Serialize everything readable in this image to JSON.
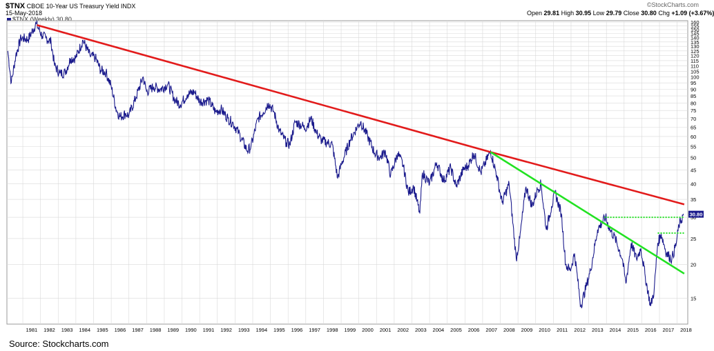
{
  "header": {
    "symbol": "$TNX",
    "description": "CBOE 10-Year US Treasury Yield",
    "exchange": "INDX",
    "date": "15-May-2018",
    "watermark": "©StockCharts.com",
    "open_label": "Open",
    "open": "29.81",
    "high_label": "High",
    "high": "30.95",
    "low_label": "Low",
    "low": "29.79",
    "close_label": "Close",
    "close": "30.80",
    "chg_label": "Chg",
    "chg": "+1.09 (+3.67%)"
  },
  "legend": {
    "label": "$TNX (Weekly) 30.80"
  },
  "last_value_tag": "30.80",
  "source": "Source: Stockcharts.com",
  "colors": {
    "price": "#1a1a8c",
    "resistance": "#e21b1b",
    "support": "#22e222",
    "grid": "#d9d9d9",
    "tag_bg": "#1a1a8c"
  },
  "chart_data": {
    "type": "line",
    "title": "CBOE 10-Year US Treasury Yield",
    "y_scale": "log",
    "ylim": [
      12,
      162
    ],
    "y_ticks": [
      15,
      20,
      25,
      30,
      35,
      40,
      45,
      50,
      55,
      60,
      65,
      70,
      75,
      80,
      85,
      90,
      95,
      100,
      105,
      110,
      115,
      120,
      125,
      130,
      135,
      140,
      145,
      150,
      155,
      160
    ],
    "x_ticks": [
      "1981",
      "1982",
      "1983",
      "1984",
      "1985",
      "1986",
      "1987",
      "1988",
      "1989",
      "1990",
      "1991",
      "1992",
      "1993",
      "1994",
      "1995",
      "1996",
      "1997",
      "1998",
      "1999",
      "2000",
      "2001",
      "2002",
      "2003",
      "2004",
      "2005",
      "2006",
      "2007",
      "2008",
      "2009",
      "2010",
      "2011",
      "2012",
      "2013",
      "2014",
      "2015",
      "2016",
      "2017",
      "2018"
    ],
    "grid": true,
    "series": [
      {
        "values": [
          [
            1980.15,
            125
          ],
          [
            1980.35,
            95
          ],
          [
            1980.6,
            120
          ],
          [
            1980.9,
            140
          ],
          [
            1981.3,
            138
          ],
          [
            1981.75,
            158
          ],
          [
            1982.1,
            142
          ],
          [
            1982.3,
            140
          ],
          [
            1982.6,
            135
          ],
          [
            1982.8,
            110
          ],
          [
            1983.1,
            103
          ],
          [
            1983.4,
            104
          ],
          [
            1983.7,
            117
          ],
          [
            1984.0,
            118
          ],
          [
            1984.4,
            137
          ],
          [
            1984.8,
            120
          ],
          [
            1985.1,
            118
          ],
          [
            1985.4,
            106
          ],
          [
            1985.7,
            104
          ],
          [
            1986.0,
            92
          ],
          [
            1986.3,
            75
          ],
          [
            1986.5,
            71
          ],
          [
            1986.8,
            73
          ],
          [
            1987.0,
            72
          ],
          [
            1987.4,
            84
          ],
          [
            1987.8,
            100
          ],
          [
            1988.0,
            88
          ],
          [
            1988.4,
            92
          ],
          [
            1988.8,
            90
          ],
          [
            1989.2,
            94
          ],
          [
            1989.6,
            82
          ],
          [
            1989.9,
            79
          ],
          [
            1990.3,
            86
          ],
          [
            1990.7,
            88
          ],
          [
            1991.0,
            81
          ],
          [
            1991.5,
            82
          ],
          [
            1991.9,
            74
          ],
          [
            1992.2,
            76
          ],
          [
            1992.6,
            70
          ],
          [
            1992.9,
            67
          ],
          [
            1993.2,
            62
          ],
          [
            1993.7,
            53
          ],
          [
            1993.9,
            55
          ],
          [
            1994.3,
            70
          ],
          [
            1994.6,
            74
          ],
          [
            1994.9,
            80
          ],
          [
            1995.2,
            74
          ],
          [
            1995.5,
            63
          ],
          [
            1995.9,
            57
          ],
          [
            1996.1,
            56
          ],
          [
            1996.4,
            68
          ],
          [
            1996.8,
            66
          ],
          [
            1996.95,
            64
          ],
          [
            1997.3,
            70
          ],
          [
            1997.6,
            62
          ],
          [
            1997.9,
            58
          ],
          [
            1998.2,
            57
          ],
          [
            1998.5,
            56
          ],
          [
            1998.8,
            42
          ],
          [
            1999.0,
            47
          ],
          [
            1999.5,
            58
          ],
          [
            1999.9,
            65
          ],
          [
            2000.1,
            68
          ],
          [
            2000.5,
            60
          ],
          [
            2000.9,
            52
          ],
          [
            2001.2,
            50
          ],
          [
            2001.5,
            53
          ],
          [
            2001.8,
            43
          ],
          [
            2002.2,
            52
          ],
          [
            2002.5,
            47
          ],
          [
            2002.8,
            37
          ],
          [
            2003.1,
            39
          ],
          [
            2003.45,
            31
          ],
          [
            2003.6,
            44
          ],
          [
            2004.0,
            40
          ],
          [
            2004.4,
            48
          ],
          [
            2004.8,
            41
          ],
          [
            2005.2,
            46
          ],
          [
            2005.5,
            39
          ],
          [
            2005.9,
            45
          ],
          [
            2006.2,
            47
          ],
          [
            2006.5,
            52
          ],
          [
            2006.9,
            44
          ],
          [
            2007.1,
            47
          ],
          [
            2007.45,
            53
          ],
          [
            2007.8,
            43
          ],
          [
            2008.1,
            34
          ],
          [
            2008.5,
            40
          ],
          [
            2008.9,
            21
          ],
          [
            2009.1,
            25
          ],
          [
            2009.45,
            39
          ],
          [
            2009.8,
            33
          ],
          [
            2010.1,
            38
          ],
          [
            2010.3,
            40
          ],
          [
            2010.6,
            27
          ],
          [
            2010.9,
            33
          ],
          [
            2011.1,
            37
          ],
          [
            2011.45,
            31
          ],
          [
            2011.7,
            20
          ],
          [
            2011.95,
            19
          ],
          [
            2012.2,
            22
          ],
          [
            2012.55,
            14
          ],
          [
            2012.9,
            17
          ],
          [
            2013.1,
            19
          ],
          [
            2013.5,
            27
          ],
          [
            2013.95,
            30
          ],
          [
            2014.2,
            27
          ],
          [
            2014.5,
            25
          ],
          [
            2014.9,
            21
          ],
          [
            2015.1,
            17
          ],
          [
            2015.4,
            24
          ],
          [
            2015.7,
            21
          ],
          [
            2015.95,
            23
          ],
          [
            2016.2,
            18
          ],
          [
            2016.5,
            14
          ],
          [
            2016.7,
            16
          ],
          [
            2016.9,
            24
          ],
          [
            2017.1,
            26
          ],
          [
            2017.4,
            22
          ],
          [
            2017.7,
            21
          ],
          [
            2017.95,
            24
          ],
          [
            2018.1,
            28
          ],
          [
            2018.37,
            30.8
          ]
        ]
      }
    ],
    "trendlines": [
      {
        "color": "red",
        "points": [
          [
            1981.8,
            156
          ],
          [
            2007.45,
            52.5
          ],
          [
            2018.4,
            33.5
          ]
        ]
      },
      {
        "color": "green",
        "points": [
          [
            2007.45,
            52.5
          ],
          [
            2018.4,
            18.5
          ]
        ]
      },
      {
        "color": "green",
        "style": "dotted",
        "points": [
          [
            2013.9,
            30
          ],
          [
            2018.4,
            30
          ]
        ]
      },
      {
        "color": "green",
        "style": "dotted",
        "points": [
          [
            2016.9,
            26.2
          ],
          [
            2018.4,
            26.2
          ]
        ]
      }
    ]
  }
}
